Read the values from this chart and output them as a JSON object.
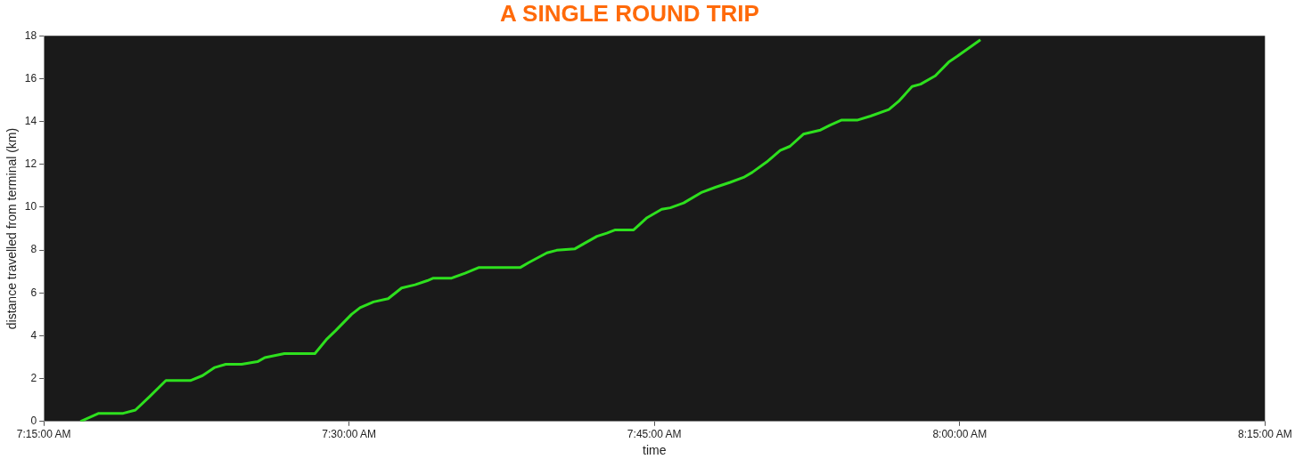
{
  "chart_data": {
    "type": "line",
    "title": "A SINGLE ROUND TRIP",
    "xlabel": "time",
    "ylabel": "distance travelled from terminal (km)",
    "xlim": [
      7.25,
      8.25
    ],
    "xticks": [
      {
        "value": 7.25,
        "label": "7:15:00 AM"
      },
      {
        "value": 7.5,
        "label": "7:30:00 AM"
      },
      {
        "value": 7.75,
        "label": "7:45:00 AM"
      },
      {
        "value": 8,
        "label": "8:00:00 AM"
      },
      {
        "value": 8.25,
        "label": "8:15:00 AM"
      }
    ],
    "ylim": [
      0,
      18
    ],
    "yticks": [
      0,
      2,
      4,
      6,
      8,
      10,
      12,
      14,
      16,
      18
    ],
    "grid": false,
    "marker": "none",
    "line_style": "solid",
    "series": [
      {
        "color": "#2ee01e",
        "x": [
          7.28,
          7.295,
          7.315,
          7.325,
          7.337,
          7.35,
          7.37,
          7.38,
          7.39,
          7.399,
          7.412,
          7.425,
          7.431,
          7.447,
          7.472,
          7.482,
          7.489,
          7.502,
          7.509,
          7.52,
          7.532,
          7.543,
          7.554,
          7.564,
          7.569,
          7.584,
          7.595,
          7.606,
          7.64,
          7.647,
          7.662,
          7.67,
          7.685,
          7.692,
          7.703,
          7.711,
          7.718,
          7.733,
          7.744,
          7.756,
          7.763,
          7.774,
          7.789,
          7.8,
          7.812,
          7.823,
          7.83,
          7.842,
          7.853,
          7.861,
          7.872,
          7.886,
          7.894,
          7.903,
          7.916,
          7.927,
          7.942,
          7.95,
          7.961,
          7.968,
          7.98,
          7.991,
          7.998,
          8.017
        ],
        "values": [
          0,
          0.38,
          0.38,
          0.53,
          1.18,
          1.91,
          1.91,
          2.14,
          2.52,
          2.67,
          2.67,
          2.79,
          2.98,
          3.17,
          3.17,
          3.86,
          4.24,
          5,
          5.31,
          5.58,
          5.73,
          6.23,
          6.38,
          6.57,
          6.69,
          6.69,
          6.92,
          7.18,
          7.18,
          7.41,
          7.87,
          7.99,
          8.06,
          8.29,
          8.64,
          8.79,
          8.94,
          8.94,
          9.51,
          9.9,
          9.97,
          10.2,
          10.7,
          10.93,
          11.16,
          11.39,
          11.62,
          12.11,
          12.65,
          12.84,
          13.41,
          13.6,
          13.83,
          14.06,
          14.06,
          14.25,
          14.56,
          14.94,
          15.63,
          15.74,
          16.13,
          16.77,
          17.04,
          17.81
        ]
      }
    ]
  }
}
